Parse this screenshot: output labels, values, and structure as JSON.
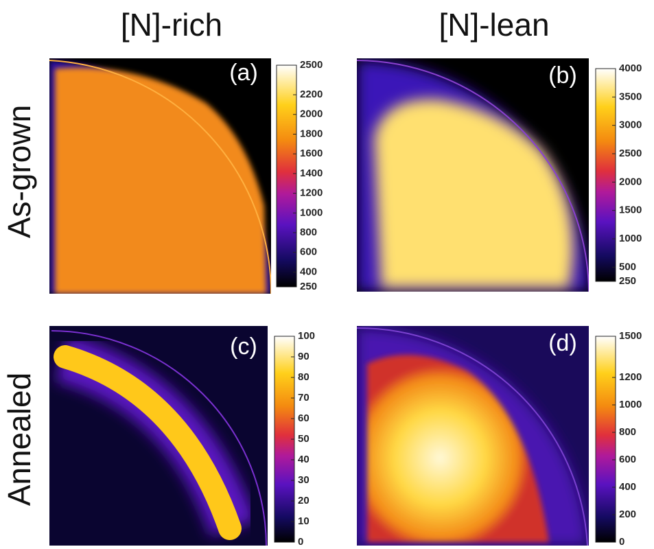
{
  "column_titles": [
    "[N]-rich",
    "[N]-lean"
  ],
  "row_titles": [
    "As-grown",
    "Annealed"
  ],
  "panels": [
    {
      "label": "(a)",
      "range": [
        250,
        2500
      ],
      "ticks": [
        250,
        400,
        600,
        800,
        1000,
        1200,
        1400,
        1600,
        1800,
        2000,
        2200,
        2500
      ]
    },
    {
      "label": "(b)",
      "range": [
        250,
        4000
      ],
      "ticks": [
        250,
        500,
        1000,
        1500,
        2000,
        2500,
        3000,
        3500,
        4000
      ]
    },
    {
      "label": "(c)",
      "range": [
        0,
        100
      ],
      "ticks": [
        0,
        10,
        20,
        30,
        40,
        50,
        60,
        70,
        80,
        90,
        100
      ]
    },
    {
      "label": "(d)",
      "range": [
        0,
        1500
      ],
      "ticks": [
        0,
        200,
        400,
        600,
        800,
        1000,
        1200,
        1500
      ]
    }
  ]
}
